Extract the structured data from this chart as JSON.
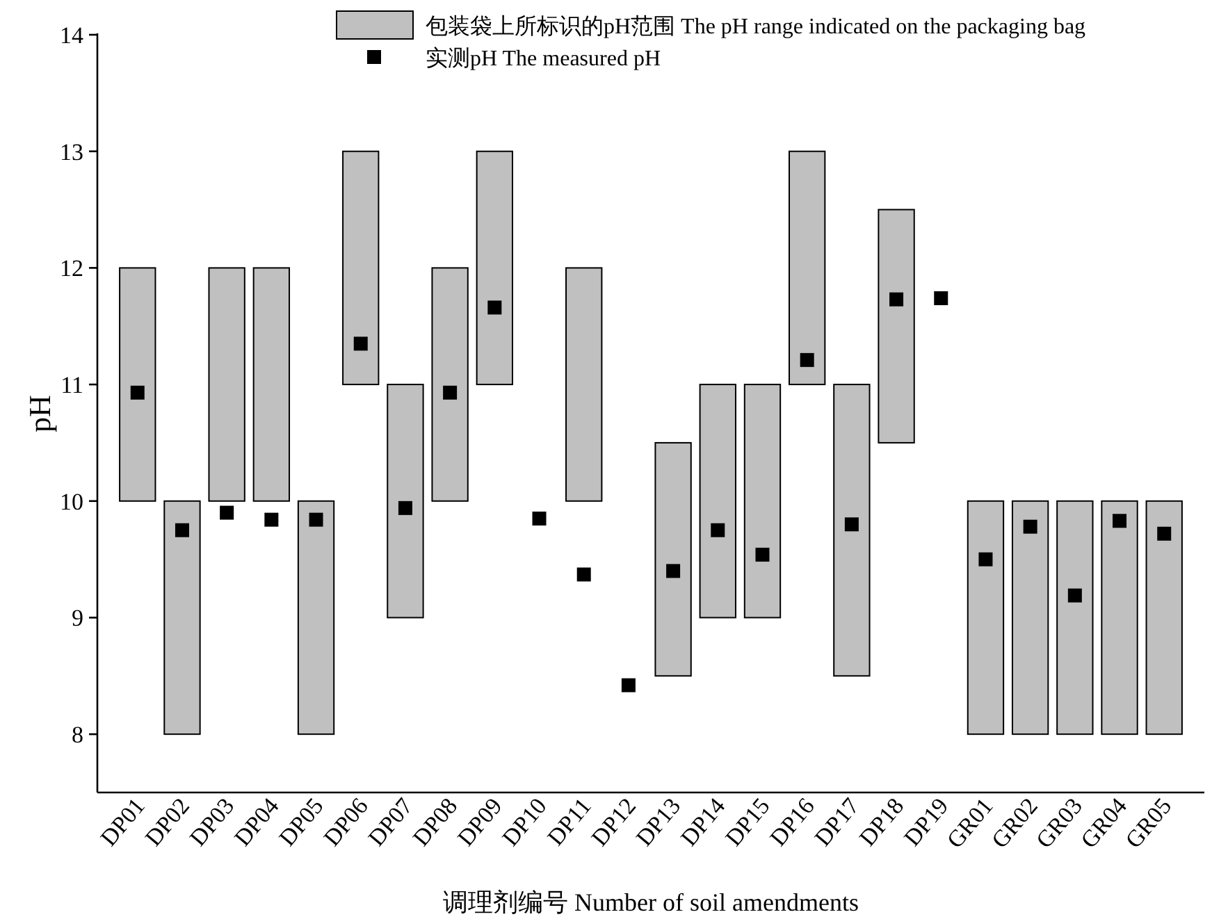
{
  "chart_data": {
    "type": "bar",
    "xlabel": "调理剂编号 Number of soil amendments",
    "ylabel": "pH",
    "categories": [
      "DP01",
      "DP02",
      "DP03",
      "DP04",
      "DP05",
      "DP06",
      "DP07",
      "DP08",
      "DP09",
      "DP10",
      "DP11",
      "DP12",
      "DP13",
      "DP14",
      "DP15",
      "DP16",
      "DP17",
      "DP18",
      "DP19",
      "GR01",
      "GR02",
      "GR03",
      "GR04",
      "GR05"
    ],
    "series": [
      {
        "name": "包装袋上所标识的pH范围 The pH range indicated on the packaging bag",
        "color": "#c0c0c0",
        "base": [
          10,
          8,
          10,
          10,
          8,
          11,
          9,
          10,
          11,
          null,
          10,
          null,
          8.5,
          9,
          9,
          11,
          8.5,
          10.5,
          null,
          8,
          8,
          8,
          8,
          8
        ],
        "values": [
          2,
          2,
          2,
          2,
          2,
          2,
          2,
          2,
          2,
          null,
          2,
          null,
          2,
          2,
          2,
          2,
          2.5,
          2,
          null,
          2,
          2,
          2,
          2,
          2
        ]
      },
      {
        "name": "实测pH The measured pH",
        "type": "scatter",
        "color": "#000000",
        "marker": "square",
        "values": [
          10.93,
          9.75,
          9.9,
          9.84,
          9.84,
          11.35,
          9.94,
          10.93,
          11.66,
          9.85,
          9.37,
          8.42,
          9.4,
          9.75,
          9.54,
          11.21,
          9.8,
          11.73,
          11.74,
          9.5,
          9.78,
          9.19,
          9.83,
          9.72
        ]
      }
    ],
    "ylim": [
      7.5,
      14
    ],
    "yticks": [
      8,
      9,
      10,
      11,
      12,
      13,
      14
    ],
    "grid": false,
    "legend": "top right"
  }
}
